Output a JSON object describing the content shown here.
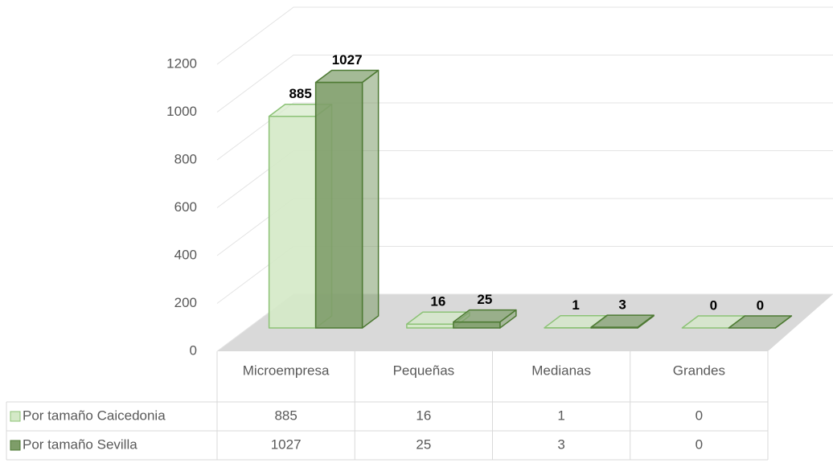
{
  "chart_data": {
    "type": "bar3d",
    "categories": [
      "Microempresa",
      "Pequeñas",
      "Medianas",
      "Grandes"
    ],
    "series": [
      {
        "name": "Por tamaño Caicedonia",
        "color": "#d4e9c7",
        "edge": "#8cc276",
        "values": [
          885,
          16,
          1,
          0
        ]
      },
      {
        "name": "Por tamaño Sevilla",
        "color": "#7e9d69",
        "edge": "#4e7a34",
        "values": [
          1027,
          25,
          3,
          0
        ]
      }
    ],
    "ylim": [
      0,
      1200
    ],
    "yticks": [
      0,
      200,
      400,
      600,
      800,
      1000,
      1200
    ],
    "grid": true
  }
}
